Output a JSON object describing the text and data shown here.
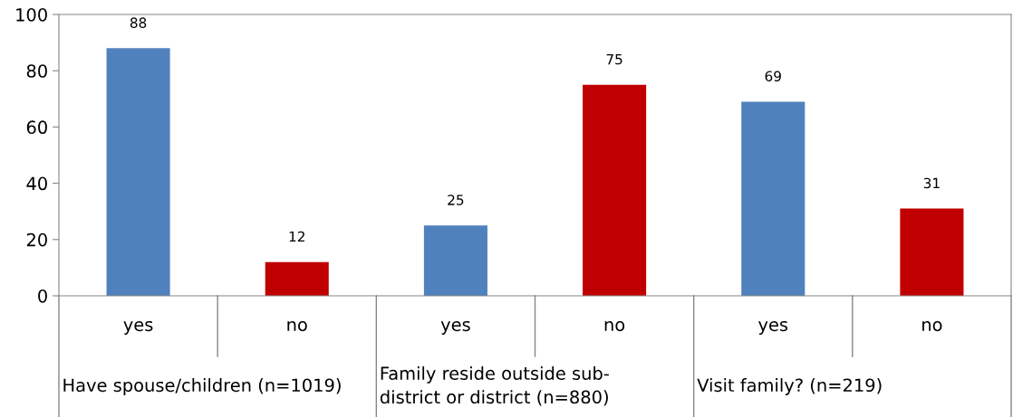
{
  "chart_data": {
    "type": "bar",
    "categories": [
      "yes",
      "no",
      "yes",
      "no",
      "yes",
      "no"
    ],
    "values": [
      88,
      12,
      25,
      75,
      69,
      31
    ],
    "colors": [
      "#4f81bd",
      "#c00000",
      "#4f81bd",
      "#c00000",
      "#4f81bd",
      "#c00000"
    ],
    "ylim": [
      0,
      100
    ],
    "yticks": [
      0,
      20,
      40,
      60,
      80,
      100
    ],
    "grid": false,
    "data_labels": true,
    "annotations": [
      "Have spouse/children (n=1019)",
      "Family reside outside sub-\ndistrict or district (n=880)",
      "Visit family? (n=219)"
    ]
  }
}
